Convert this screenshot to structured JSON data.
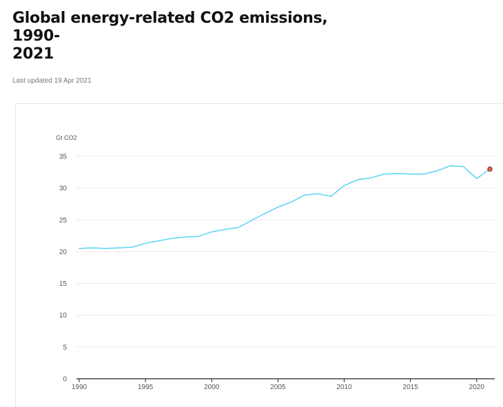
{
  "page": {
    "title": "Global energy-related CO2 emissions, 1990-2021",
    "title_line1": "Global energy-related CO2 emissions, 1990-",
    "title_line2": "2021",
    "last_updated": "Last updated 19 Apr 2021"
  },
  "colors": {
    "line": "#5ed8ef",
    "marker_fill": "#e0664a",
    "marker_stroke": "#7a2a1c",
    "grid": "#e9e9e9",
    "axis": "#222222"
  },
  "chart_data": {
    "type": "line",
    "ylabel": "Gt CO2",
    "xlabel": "",
    "ylim": [
      0,
      35
    ],
    "xlim": [
      1990,
      2021
    ],
    "yticks": [
      0,
      5,
      10,
      15,
      20,
      25,
      30,
      35
    ],
    "xticks": [
      1990,
      1995,
      2000,
      2005,
      2010,
      2015,
      2020
    ],
    "grid": true,
    "series": [
      {
        "x": [
          1990,
          1991,
          1992,
          1993,
          1994,
          1995,
          1996,
          1997,
          1998,
          1999,
          2000,
          2001,
          2002,
          2003,
          2004,
          2005,
          2006,
          2007,
          2008,
          2009,
          2010,
          2011,
          2012,
          2013,
          2014,
          2015,
          2016,
          2017,
          2018,
          2019,
          2020,
          2021
        ],
        "values": [
          20.5,
          20.6,
          20.5,
          20.6,
          20.7,
          21.3,
          21.7,
          22.1,
          22.3,
          22.4,
          23.1,
          23.5,
          23.8,
          24.9,
          26.0,
          27.0,
          27.8,
          28.9,
          29.1,
          28.7,
          30.4,
          31.3,
          31.6,
          32.2,
          32.3,
          32.2,
          32.2,
          32.7,
          33.5,
          33.4,
          31.5,
          33.0
        ]
      }
    ],
    "highlight_point": {
      "x": 2021,
      "y": 33.0
    }
  }
}
